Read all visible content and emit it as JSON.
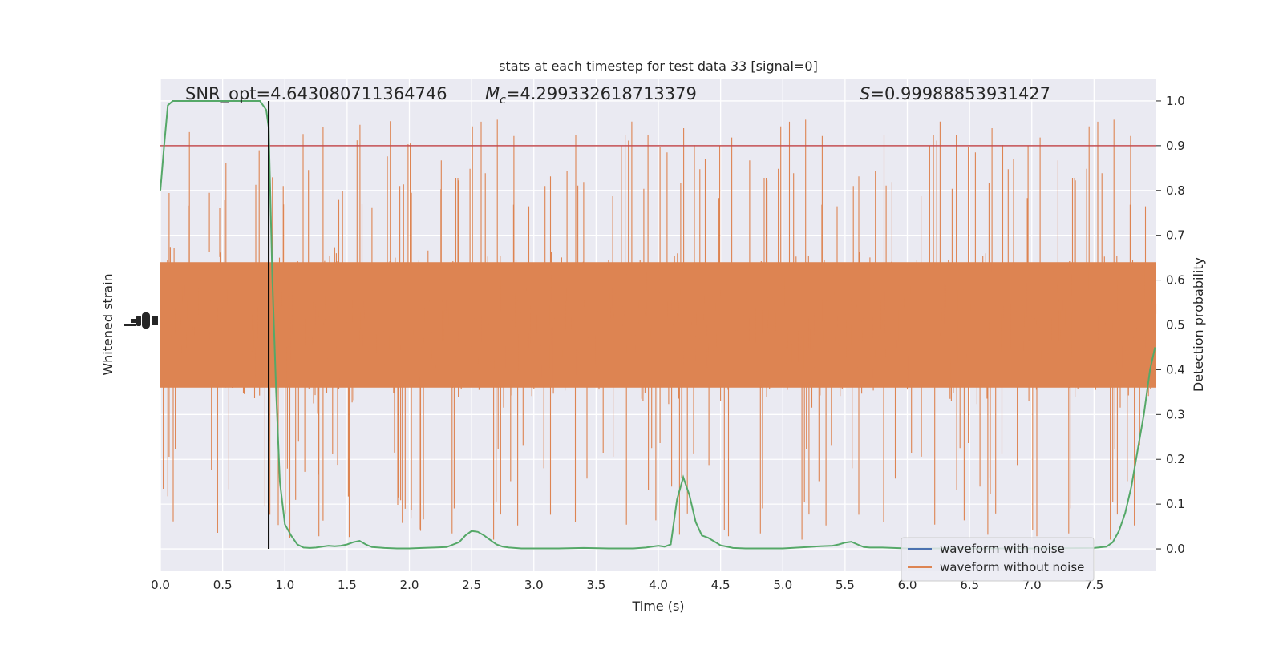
{
  "chart_data": {
    "type": "line",
    "title": "stats at each timestep for test data 33 [signal=0]",
    "xlabel": "Time (s)",
    "ylabel_left": "Whitened strain",
    "ylabel_right": "Detection probability",
    "xlim": [
      0.0,
      8.0
    ],
    "ylim_right": [
      -0.05,
      1.05
    ],
    "x_ticks": [
      "0.0",
      "0.5",
      "1.0",
      "1.5",
      "2.0",
      "2.5",
      "3.0",
      "3.5",
      "4.0",
      "4.5",
      "5.0",
      "5.5",
      "6.0",
      "6.5",
      "7.0",
      "7.5"
    ],
    "y_right_ticks": [
      "0.0",
      "0.1",
      "0.2",
      "0.3",
      "0.4",
      "0.5",
      "0.6",
      "0.7",
      "0.8",
      "0.9",
      "1.0"
    ],
    "grid": true,
    "annotations": {
      "snr": "SNR_opt=4.643080711364746",
      "mc_symbol": "M",
      "mc_sub": "c",
      "mc_value": "=4.299332618713379",
      "s_symbol": "S",
      "s_value": "=0.99988853931427"
    },
    "threshold": 0.9,
    "marker_time": 0.87,
    "legend": {
      "placement": "lower right",
      "entries": [
        {
          "label": "waveform with noise",
          "color": "#4c72b0"
        },
        {
          "label": "waveform without noise",
          "color": "#dd8452"
        }
      ]
    },
    "series": [
      {
        "name": "waveform without noise",
        "color": "#dd8452",
        "kind": "dense-noise",
        "band_center": 0.5,
        "band_spread": 0.2
      },
      {
        "name": "detection probability",
        "color": "#55a868",
        "x": [
          0.0,
          0.03,
          0.06,
          0.1,
          0.15,
          0.2,
          0.3,
          0.4,
          0.5,
          0.6,
          0.7,
          0.8,
          0.85,
          0.87,
          0.9,
          0.93,
          0.96,
          1.0,
          1.05,
          1.1,
          1.15,
          1.2,
          1.25,
          1.3,
          1.35,
          1.4,
          1.45,
          1.5,
          1.55,
          1.6,
          1.65,
          1.7,
          1.8,
          1.9,
          2.0,
          2.1,
          2.2,
          2.3,
          2.4,
          2.45,
          2.5,
          2.55,
          2.6,
          2.65,
          2.7,
          2.75,
          2.8,
          2.9,
          3.0,
          3.2,
          3.4,
          3.6,
          3.8,
          3.9,
          3.95,
          4.0,
          4.05,
          4.1,
          4.15,
          4.2,
          4.25,
          4.3,
          4.35,
          4.4,
          4.5,
          4.6,
          4.7,
          4.8,
          5.0,
          5.2,
          5.3,
          5.4,
          5.45,
          5.5,
          5.55,
          5.6,
          5.65,
          5.7,
          5.8,
          6.0,
          6.5,
          7.0,
          7.5,
          7.6,
          7.65,
          7.7,
          7.75,
          7.8,
          7.85,
          7.9,
          7.95,
          7.99
        ],
        "y": [
          0.8,
          0.9,
          0.99,
          1.0,
          1.0,
          1.0,
          1.0,
          1.0,
          1.0,
          1.0,
          1.0,
          1.0,
          0.98,
          0.94,
          0.6,
          0.35,
          0.15,
          0.055,
          0.03,
          0.01,
          0.003,
          0.002,
          0.003,
          0.005,
          0.007,
          0.006,
          0.007,
          0.01,
          0.015,
          0.018,
          0.01,
          0.004,
          0.002,
          0.001,
          0.001,
          0.002,
          0.003,
          0.004,
          0.015,
          0.03,
          0.04,
          0.038,
          0.03,
          0.02,
          0.01,
          0.005,
          0.003,
          0.001,
          0.001,
          0.001,
          0.002,
          0.001,
          0.001,
          0.003,
          0.005,
          0.007,
          0.005,
          0.01,
          0.11,
          0.16,
          0.12,
          0.06,
          0.03,
          0.025,
          0.008,
          0.002,
          0.001,
          0.001,
          0.001,
          0.004,
          0.006,
          0.007,
          0.01,
          0.014,
          0.016,
          0.01,
          0.004,
          0.003,
          0.003,
          0.001,
          0.001,
          0.001,
          0.002,
          0.005,
          0.015,
          0.04,
          0.08,
          0.14,
          0.22,
          0.3,
          0.4,
          0.45
        ]
      }
    ]
  }
}
